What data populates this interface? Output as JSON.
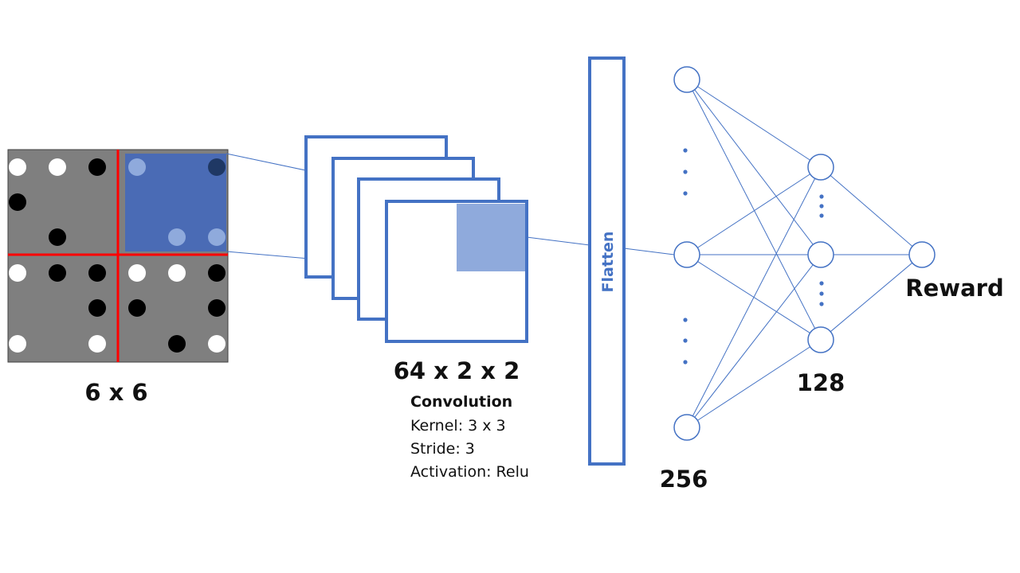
{
  "colors": {
    "accent_blue": "#4472c4",
    "grid_gray": "#7f7f7f",
    "grid_divider_red": "#ff0000",
    "kernel_highlight": "#4a6bb5",
    "feature_highlight": "#8faadc",
    "piece_white": "#ffffff",
    "piece_black": "#000000"
  },
  "input_grid": {
    "label": "6 x 6",
    "rows": 6,
    "cols": 6,
    "highlight": {
      "row": 0,
      "col": 3,
      "size": 3
    },
    "pieces": [
      {
        "r": 0,
        "c": 0,
        "color": "white"
      },
      {
        "r": 0,
        "c": 1,
        "color": "white"
      },
      {
        "r": 0,
        "c": 2,
        "color": "black"
      },
      {
        "r": 0,
        "c": 3,
        "color": "white"
      },
      {
        "r": 0,
        "c": 5,
        "color": "black"
      },
      {
        "r": 1,
        "c": 0,
        "color": "black"
      },
      {
        "r": 2,
        "c": 1,
        "color": "black"
      },
      {
        "r": 2,
        "c": 4,
        "color": "white"
      },
      {
        "r": 2,
        "c": 5,
        "color": "white"
      },
      {
        "r": 3,
        "c": 0,
        "color": "white"
      },
      {
        "r": 3,
        "c": 1,
        "color": "black"
      },
      {
        "r": 3,
        "c": 2,
        "color": "black"
      },
      {
        "r": 3,
        "c": 3,
        "color": "white"
      },
      {
        "r": 3,
        "c": 4,
        "color": "white"
      },
      {
        "r": 3,
        "c": 5,
        "color": "black"
      },
      {
        "r": 4,
        "c": 2,
        "color": "black"
      },
      {
        "r": 4,
        "c": 3,
        "color": "black"
      },
      {
        "r": 4,
        "c": 5,
        "color": "black"
      },
      {
        "r": 5,
        "c": 0,
        "color": "white"
      },
      {
        "r": 5,
        "c": 2,
        "color": "white"
      },
      {
        "r": 5,
        "c": 4,
        "color": "black"
      },
      {
        "r": 5,
        "c": 5,
        "color": "white"
      }
    ]
  },
  "conv_layer": {
    "label": "64 x 2 x 2",
    "title": "Convolution",
    "kernel": "Kernel: 3 x 3",
    "stride": "Stride: 3",
    "activation": "Activation: Relu",
    "feature_maps_drawn": 4
  },
  "flatten": {
    "label": "Flatten"
  },
  "dense_1": {
    "label": "256",
    "nodes_drawn": 3
  },
  "dense_2": {
    "label": "128",
    "nodes_drawn": 3
  },
  "output": {
    "label": "Reward",
    "nodes_drawn": 1
  }
}
